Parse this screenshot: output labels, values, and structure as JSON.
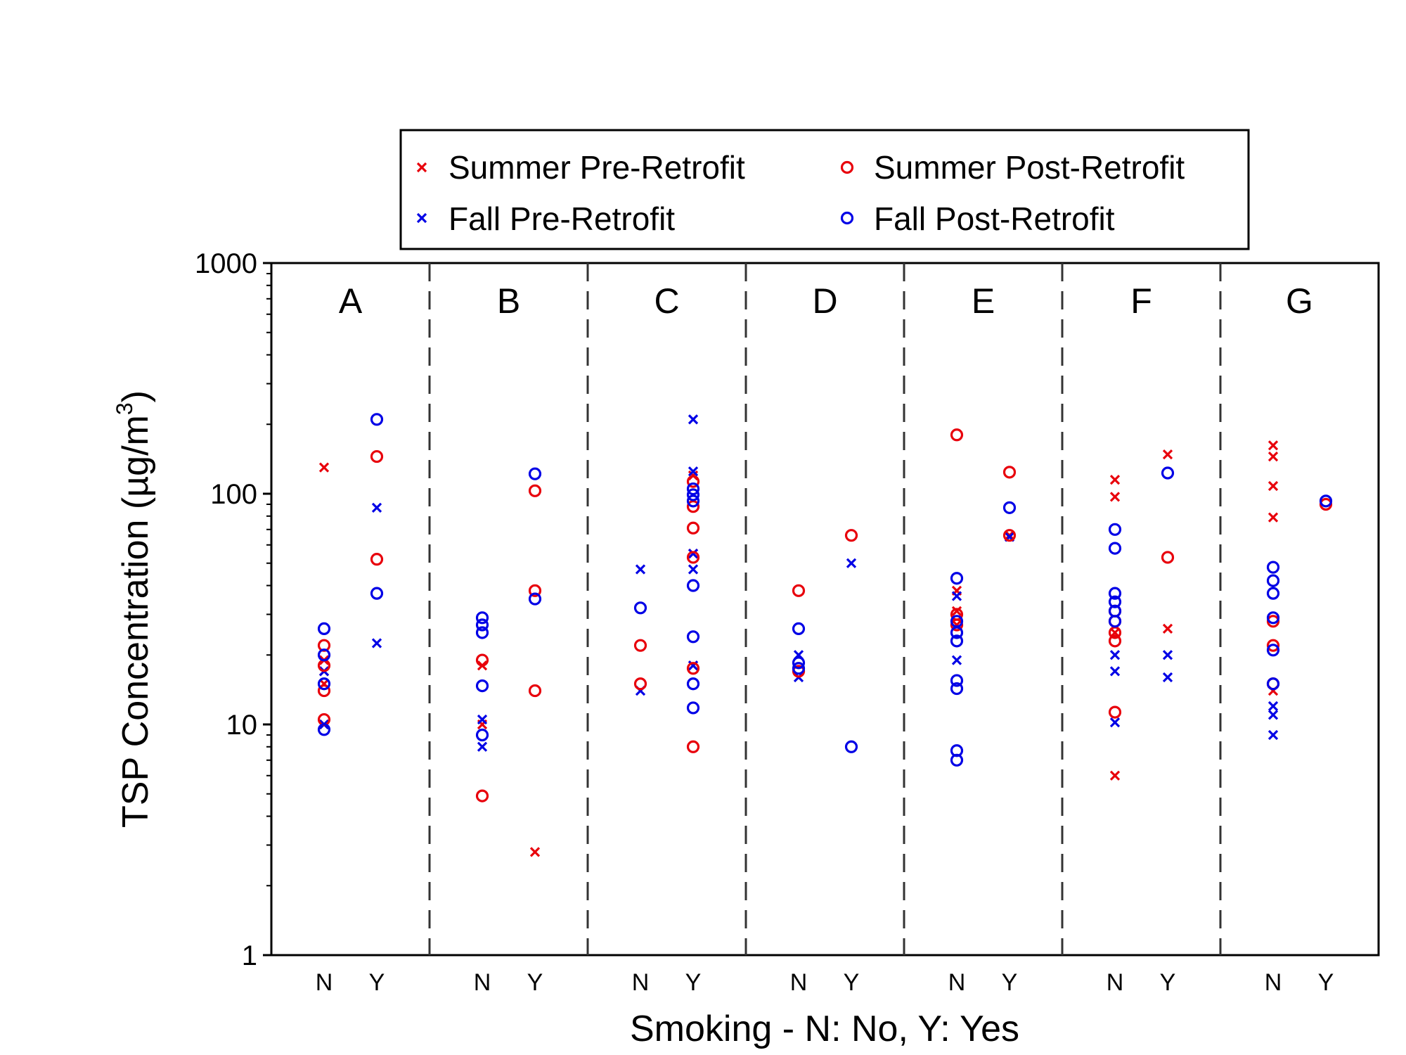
{
  "chart_data": {
    "type": "scatter",
    "title": "",
    "ylabel_main": "TSP Concentration (µg/m",
    "ylabel_sup": "3",
    "ylabel_close": ")",
    "xlabel": "Smoking - N: No, Y: Yes",
    "yscale": "log",
    "ylim": [
      1,
      1000
    ],
    "yticks": [
      {
        "value": 1,
        "label": "1"
      },
      {
        "value": 10,
        "label": "10"
      },
      {
        "value": 100,
        "label": "100"
      },
      {
        "value": 1000,
        "label": "1000"
      }
    ],
    "groups": [
      "A",
      "B",
      "C",
      "D",
      "E",
      "F",
      "G"
    ],
    "subcategories": [
      "N",
      "Y"
    ],
    "grid": false,
    "legend_position": "top",
    "series": [
      {
        "name": "Summer Pre-Retrofit",
        "marker": "x",
        "color": "#e8000b",
        "points": [
          {
            "group": "A",
            "sub": "N",
            "values": [
              130,
              19,
              17,
              15,
              10
            ]
          },
          {
            "group": "A",
            "sub": "Y",
            "values": []
          },
          {
            "group": "B",
            "sub": "N",
            "values": [
              18,
              10
            ]
          },
          {
            "group": "B",
            "sub": "Y",
            "values": [
              2.8
            ]
          },
          {
            "group": "C",
            "sub": "N",
            "values": []
          },
          {
            "group": "C",
            "sub": "Y",
            "values": [
              120,
              55,
              18
            ]
          },
          {
            "group": "D",
            "sub": "N",
            "values": []
          },
          {
            "group": "D",
            "sub": "Y",
            "values": []
          },
          {
            "group": "E",
            "sub": "N",
            "values": [
              38,
              31,
              27
            ]
          },
          {
            "group": "E",
            "sub": "Y",
            "values": [
              66
            ]
          },
          {
            "group": "F",
            "sub": "N",
            "values": [
              115,
              97,
              25,
              6
            ]
          },
          {
            "group": "F",
            "sub": "Y",
            "values": [
              148,
              26
            ]
          },
          {
            "group": "G",
            "sub": "N",
            "values": [
              162,
              145,
              108,
              79,
              14
            ]
          },
          {
            "group": "G",
            "sub": "Y",
            "values": []
          }
        ]
      },
      {
        "name": "Fall Pre-Retrofit",
        "marker": "x",
        "color": "#0000e6",
        "points": [
          {
            "group": "A",
            "sub": "N",
            "values": [
              17,
              10
            ]
          },
          {
            "group": "A",
            "sub": "Y",
            "values": [
              87,
              22.5
            ]
          },
          {
            "group": "B",
            "sub": "N",
            "values": [
              10.5,
              8
            ]
          },
          {
            "group": "B",
            "sub": "Y",
            "values": []
          },
          {
            "group": "C",
            "sub": "N",
            "values": [
              47,
              14
            ]
          },
          {
            "group": "C",
            "sub": "Y",
            "values": [
              210,
              125,
              55,
              47,
              18
            ]
          },
          {
            "group": "D",
            "sub": "N",
            "values": [
              20,
              16
            ]
          },
          {
            "group": "D",
            "sub": "Y",
            "values": [
              50
            ]
          },
          {
            "group": "E",
            "sub": "N",
            "values": [
              36,
              19
            ]
          },
          {
            "group": "E",
            "sub": "Y",
            "values": [
              65
            ]
          },
          {
            "group": "F",
            "sub": "N",
            "values": [
              20,
              17,
              10.2
            ]
          },
          {
            "group": "F",
            "sub": "Y",
            "values": [
              20,
              16
            ]
          },
          {
            "group": "G",
            "sub": "N",
            "values": [
              12,
              11,
              9
            ]
          },
          {
            "group": "G",
            "sub": "Y",
            "values": []
          }
        ]
      },
      {
        "name": "Summer Post-Retrofit",
        "marker": "o",
        "color": "#e8000b",
        "points": [
          {
            "group": "A",
            "sub": "N",
            "values": [
              22,
              18,
              14,
              10.5
            ]
          },
          {
            "group": "A",
            "sub": "Y",
            "values": [
              145,
              52
            ]
          },
          {
            "group": "B",
            "sub": "N",
            "values": [
              19,
              4.9
            ]
          },
          {
            "group": "B",
            "sub": "Y",
            "values": [
              103,
              38,
              14
            ]
          },
          {
            "group": "C",
            "sub": "N",
            "values": [
              22,
              15
            ]
          },
          {
            "group": "C",
            "sub": "Y",
            "values": [
              113,
              88,
              71,
              53,
              17.5,
              8
            ]
          },
          {
            "group": "D",
            "sub": "N",
            "values": [
              38,
              17
            ]
          },
          {
            "group": "D",
            "sub": "Y",
            "values": [
              66
            ]
          },
          {
            "group": "E",
            "sub": "N",
            "values": [
              180,
              30,
              27
            ]
          },
          {
            "group": "E",
            "sub": "Y",
            "values": [
              124,
              66
            ]
          },
          {
            "group": "F",
            "sub": "N",
            "values": [
              31,
              28,
              25,
              23,
              11.3
            ]
          },
          {
            "group": "F",
            "sub": "Y",
            "values": [
              53
            ]
          },
          {
            "group": "G",
            "sub": "N",
            "values": [
              28,
              22,
              15
            ]
          },
          {
            "group": "G",
            "sub": "Y",
            "values": [
              90
            ]
          }
        ]
      },
      {
        "name": "Fall Post-Retrofit",
        "marker": "o",
        "color": "#0000e6",
        "points": [
          {
            "group": "A",
            "sub": "N",
            "values": [
              26,
              20,
              15,
              9.5
            ]
          },
          {
            "group": "A",
            "sub": "Y",
            "values": [
              210,
              37
            ]
          },
          {
            "group": "B",
            "sub": "N",
            "values": [
              29,
              27,
              25,
              14.7,
              9
            ]
          },
          {
            "group": "B",
            "sub": "Y",
            "values": [
              122,
              35
            ]
          },
          {
            "group": "C",
            "sub": "N",
            "values": [
              32
            ]
          },
          {
            "group": "C",
            "sub": "Y",
            "values": [
              105,
              99,
              93,
              40,
              24,
              15,
              11.8
            ]
          },
          {
            "group": "D",
            "sub": "N",
            "values": [
              26,
              18.5,
              17.5
            ]
          },
          {
            "group": "D",
            "sub": "Y",
            "values": [
              8
            ]
          },
          {
            "group": "E",
            "sub": "N",
            "values": [
              43,
              28,
              25,
              23,
              15.5,
              14.3,
              7.7,
              7
            ]
          },
          {
            "group": "E",
            "sub": "Y",
            "values": [
              87
            ]
          },
          {
            "group": "F",
            "sub": "N",
            "values": [
              70,
              58,
              37,
              34,
              31,
              28
            ]
          },
          {
            "group": "F",
            "sub": "Y",
            "values": [
              123
            ]
          },
          {
            "group": "G",
            "sub": "N",
            "values": [
              48,
              42,
              37,
              29,
              21,
              15
            ]
          },
          {
            "group": "G",
            "sub": "Y",
            "values": [
              93
            ]
          }
        ]
      }
    ]
  }
}
